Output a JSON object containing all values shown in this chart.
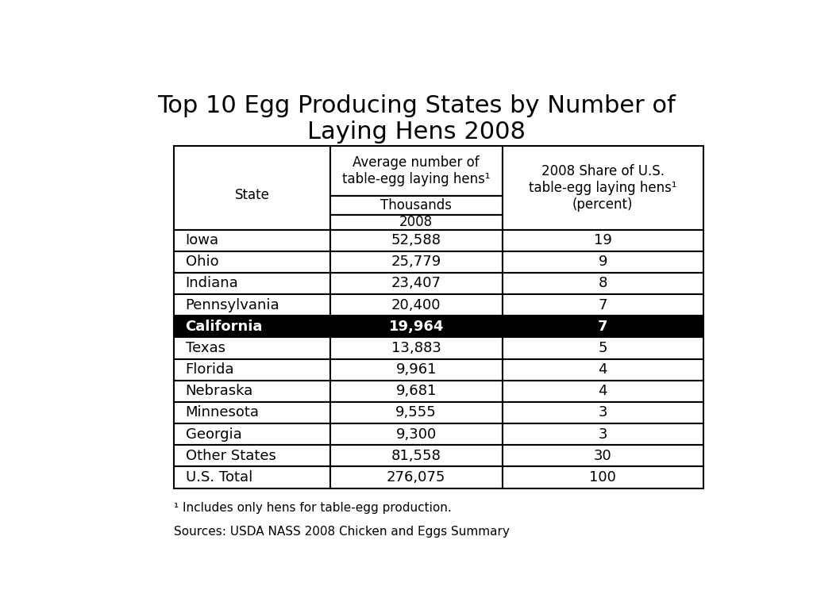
{
  "title": "Top 10 Egg Producing States by Number of\nLaying Hens 2008",
  "title_fontsize": 22,
  "col_header_1": "Average number of\ntable-egg laying hens¹",
  "col_header_2": "2008 Share of U.S.\ntable-egg laying hens¹\n(percent)",
  "thousands_label": "Thousands",
  "year_label": "2008",
  "state_label": "State",
  "rows": [
    [
      "Iowa",
      "52,588",
      "19"
    ],
    [
      "Ohio",
      "25,779",
      "9"
    ],
    [
      "Indiana",
      "23,407",
      "8"
    ],
    [
      "Pennsylvania",
      "20,400",
      "7"
    ],
    [
      "California",
      "19,964",
      "7"
    ],
    [
      "Texas",
      "13,883",
      "5"
    ],
    [
      "Florida",
      "9,961",
      "4"
    ],
    [
      "Nebraska",
      "9,681",
      "4"
    ],
    [
      "Minnesota",
      "9,555",
      "3"
    ],
    [
      "Georgia",
      "9,300",
      "3"
    ],
    [
      "Other States",
      "81,558",
      "30"
    ],
    [
      "U.S. Total",
      "276,075",
      "100"
    ]
  ],
  "highlight_row": 4,
  "highlight_bg": "#000000",
  "highlight_fg": "#ffffff",
  "footnote1": "¹ Includes only hens for table-egg production.",
  "footnote2": "Sources: USDA NASS 2008 Chicken and Eggs Summary",
  "footnote_fontsize": 11,
  "data_fontsize": 13,
  "header_fontsize": 12,
  "background_color": "#ffffff"
}
